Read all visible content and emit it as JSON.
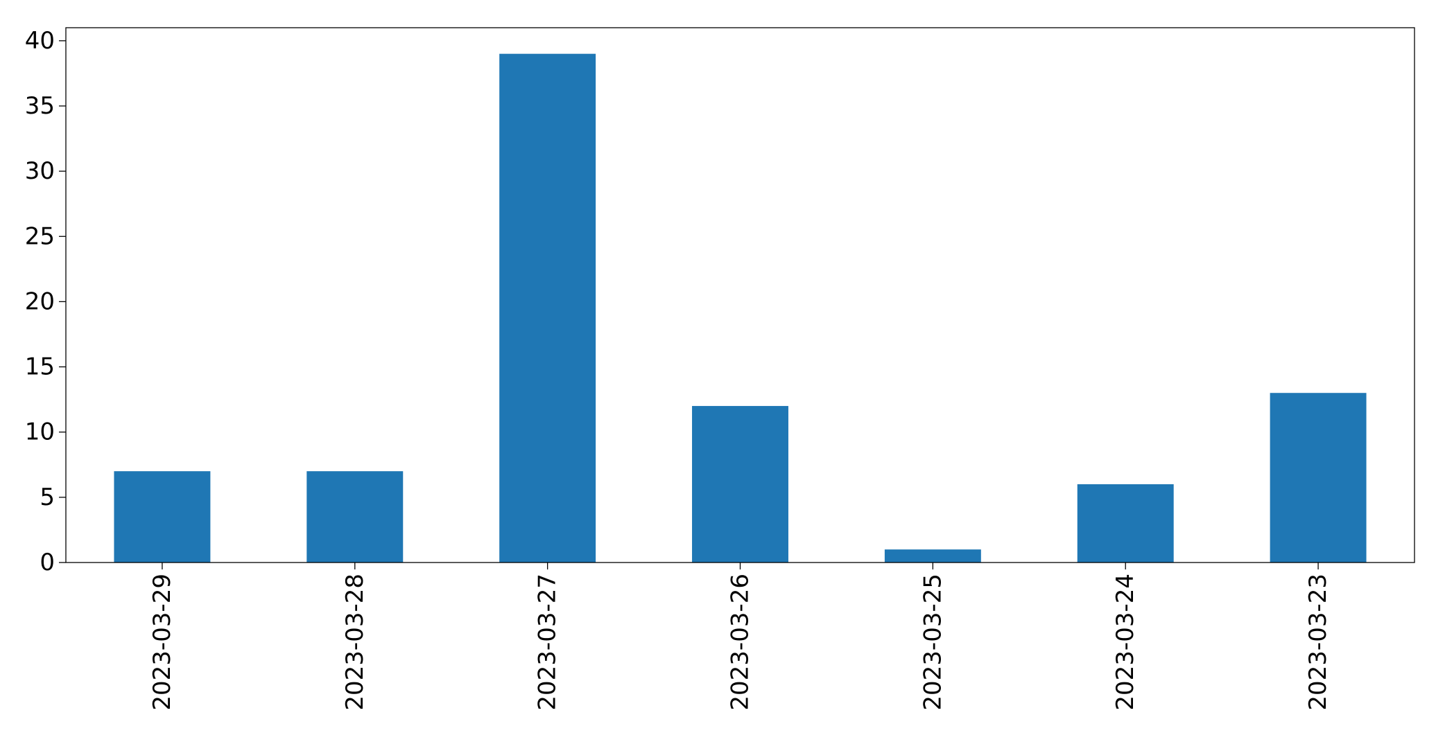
{
  "chart_data": {
    "type": "bar",
    "title": "",
    "xlabel": "",
    "ylabel": "",
    "categories": [
      "2023-03-29",
      "2023-03-28",
      "2023-03-27",
      "2023-03-26",
      "2023-03-25",
      "2023-03-24",
      "2023-03-23"
    ],
    "values": [
      7,
      7,
      39,
      12,
      1,
      6,
      13
    ],
    "ylim": [
      0,
      41
    ],
    "yticks": [
      0,
      5,
      10,
      15,
      20,
      25,
      30,
      35,
      40
    ],
    "bar_color": "#1f77b4",
    "grid": false,
    "legend": "none"
  }
}
